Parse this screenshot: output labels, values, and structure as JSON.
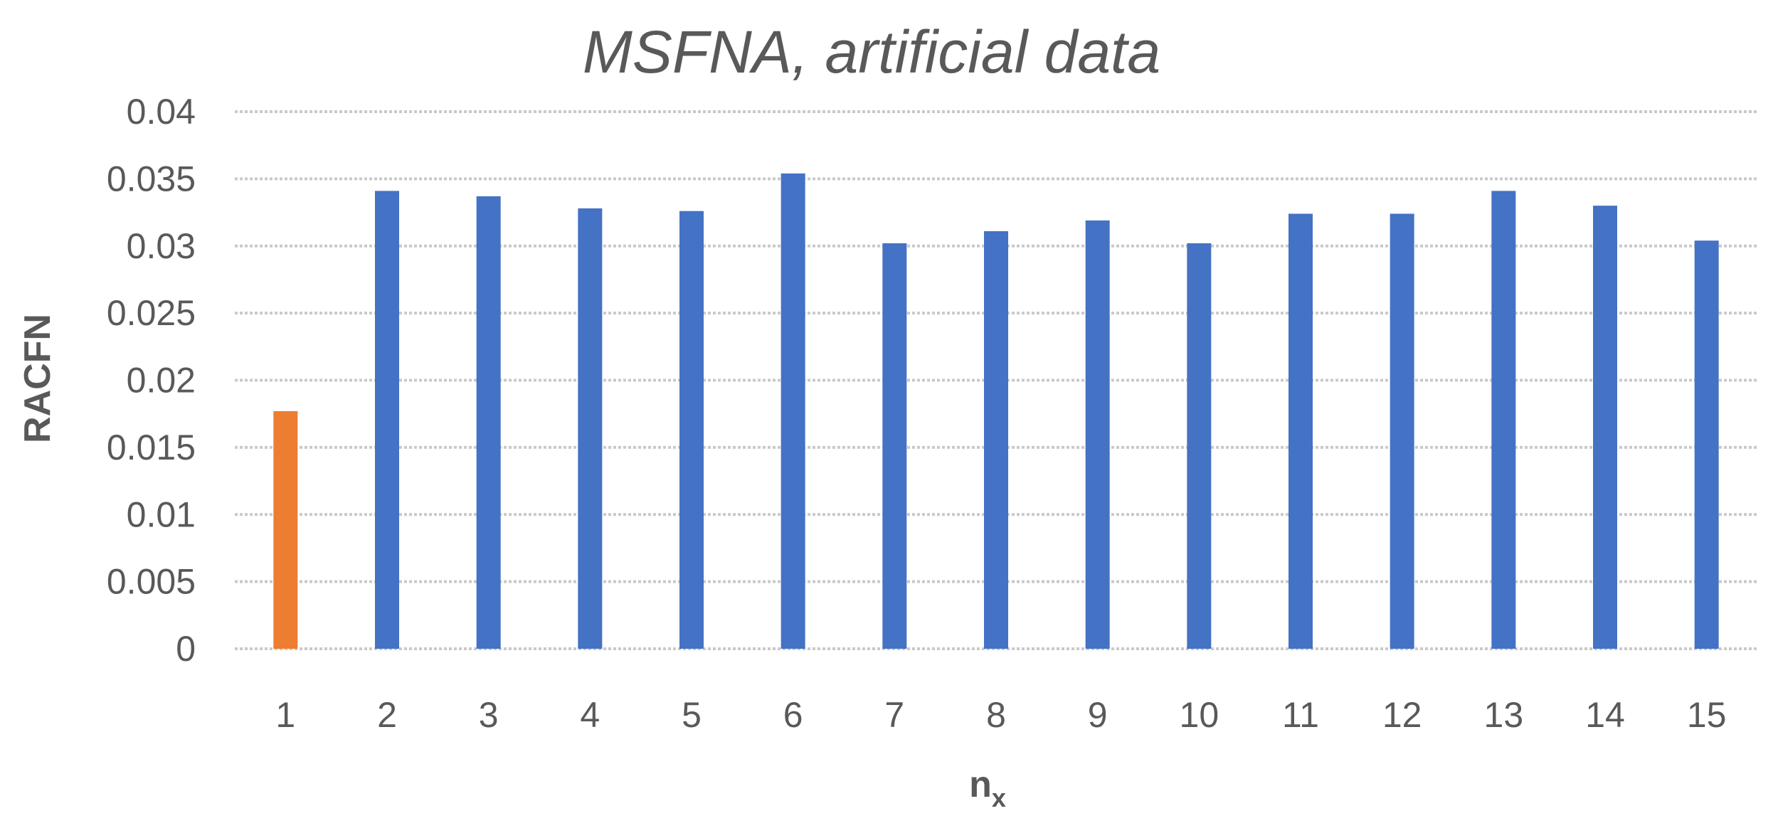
{
  "chart_data": {
    "type": "bar",
    "title": "MSFNA, artificial data",
    "xlabel": "n",
    "xlabel_subscript": "x",
    "ylabel": "RACFN",
    "categories": [
      "1",
      "2",
      "3",
      "4",
      "5",
      "6",
      "7",
      "8",
      "9",
      "10",
      "11",
      "12",
      "13",
      "14",
      "15"
    ],
    "values": [
      0.0177,
      0.0341,
      0.0337,
      0.0328,
      0.0326,
      0.0354,
      0.0302,
      0.0311,
      0.0319,
      0.0302,
      0.0324,
      0.0324,
      0.0341,
      0.033,
      0.0304
    ],
    "bar_colors": [
      "#ed7d31",
      "#4472c4",
      "#4472c4",
      "#4472c4",
      "#4472c4",
      "#4472c4",
      "#4472c4",
      "#4472c4",
      "#4472c4",
      "#4472c4",
      "#4472c4",
      "#4472c4",
      "#4472c4",
      "#4472c4",
      "#4472c4"
    ],
    "ylim": [
      0,
      0.04
    ],
    "yticks": [
      "0",
      "0.005",
      "0.01",
      "0.015",
      "0.02",
      "0.025",
      "0.03",
      "0.035",
      "0.04"
    ],
    "grid": true,
    "legend": "none"
  }
}
